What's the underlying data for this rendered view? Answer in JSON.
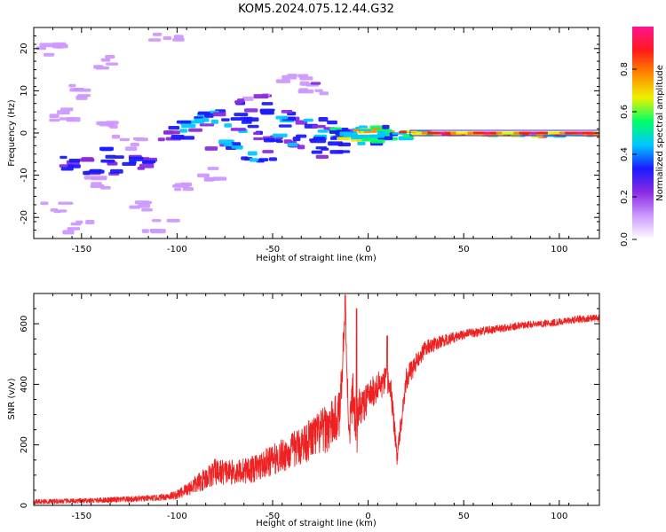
{
  "title": "KOM5.2024.075.12.44.G32",
  "chart_data": [
    {
      "type": "heatmap",
      "xlabel": "Height of straight line (km)",
      "ylabel": "Frequency (Hz)",
      "xlim": [
        -175,
        121
      ],
      "ylim": [
        -25,
        25
      ],
      "xticks": [
        -150,
        -100,
        -50,
        0,
        50,
        100
      ],
      "yticks": [
        -20,
        -10,
        0,
        10,
        20
      ],
      "colorbar": {
        "label": "Normalized spectral amplitude",
        "range": [
          0,
          1
        ],
        "ticks": [
          0.0,
          0.2,
          0.4,
          0.6,
          0.8
        ],
        "colors": [
          "#ffffff",
          "#cc99ff",
          "#8a2be2",
          "#1a1aff",
          "#00c8ff",
          "#00ff66",
          "#f0f000",
          "#ff8800",
          "#ff1a1a",
          "#ff1493"
        ]
      },
      "blobs": [
        {
          "x": -165,
          "y": 20,
          "amp": 0.15
        },
        {
          "x": -140,
          "y": 17,
          "amp": 0.12
        },
        {
          "x": -150,
          "y": 10,
          "amp": 0.15
        },
        {
          "x": -160,
          "y": 4,
          "amp": 0.15
        },
        {
          "x": -135,
          "y": 3,
          "amp": 0.12
        },
        {
          "x": -125,
          "y": -2,
          "amp": 0.15
        },
        {
          "x": -155,
          "y": -7,
          "amp": 0.35
        },
        {
          "x": -140,
          "y": -8,
          "amp": 0.38
        },
        {
          "x": -120,
          "y": -7,
          "amp": 0.35
        },
        {
          "x": -130,
          "y": -5,
          "amp": 0.3
        },
        {
          "x": -145,
          "y": -12,
          "amp": 0.15
        },
        {
          "x": -165,
          "y": -18,
          "amp": 0.12
        },
        {
          "x": -150,
          "y": -22,
          "amp": 0.12
        },
        {
          "x": -120,
          "y": -17,
          "amp": 0.12
        },
        {
          "x": -110,
          "y": -22,
          "amp": 0.1
        },
        {
          "x": -100,
          "y": 0,
          "amp": 0.4
        },
        {
          "x": -90,
          "y": 2,
          "amp": 0.45
        },
        {
          "x": -82,
          "y": 4,
          "amp": 0.4
        },
        {
          "x": -75,
          "y": -2,
          "amp": 0.42
        },
        {
          "x": -68,
          "y": 2,
          "amp": 0.4
        },
        {
          "x": -60,
          "y": 6,
          "amp": 0.35
        },
        {
          "x": -56,
          "y": -6,
          "amp": 0.4
        },
        {
          "x": -50,
          "y": 0,
          "amp": 0.42
        },
        {
          "x": -45,
          "y": -3,
          "amp": 0.38
        },
        {
          "x": -38,
          "y": 4,
          "amp": 0.38
        },
        {
          "x": -30,
          "y": -2,
          "amp": 0.4
        },
        {
          "x": -25,
          "y": 2,
          "amp": 0.38
        },
        {
          "x": -20,
          "y": -4,
          "amp": 0.36
        },
        {
          "x": -15,
          "y": 0,
          "amp": 0.45
        },
        {
          "x": -8,
          "y": -1,
          "amp": 0.55
        },
        {
          "x": -3,
          "y": 0,
          "amp": 0.6
        },
        {
          "x": 2,
          "y": 0.5,
          "amp": 0.8
        },
        {
          "x": 8,
          "y": -1,
          "amp": 0.55
        },
        {
          "x": 15,
          "y": 0,
          "amp": 0.6
        },
        {
          "x": 22,
          "y": 0,
          "amp": 0.75
        },
        {
          "x": 35,
          "y": -0.3,
          "amp": 0.9
        },
        {
          "x": 50,
          "y": -0.3,
          "amp": 0.85
        },
        {
          "x": 65,
          "y": -0.5,
          "amp": 0.7
        },
        {
          "x": 80,
          "y": -0.5,
          "amp": 0.85
        },
        {
          "x": 95,
          "y": -0.7,
          "amp": 0.8
        },
        {
          "x": 110,
          "y": -0.5,
          "amp": 0.75
        },
        {
          "x": 118,
          "y": -0.4,
          "amp": 0.7
        },
        {
          "x": -40,
          "y": 12,
          "amp": 0.15
        },
        {
          "x": -28,
          "y": 11,
          "amp": 0.15
        },
        {
          "x": -60,
          "y": 9,
          "amp": 0.2
        },
        {
          "x": -105,
          "y": 22,
          "amp": 0.1
        },
        {
          "x": -80,
          "y": -10,
          "amp": 0.12
        },
        {
          "x": -95,
          "y": -12,
          "amp": 0.1
        }
      ]
    },
    {
      "type": "line",
      "xlabel": "Height of straight line (km)",
      "ylabel": "SNR (v/v)",
      "xlim": [
        -175,
        121
      ],
      "ylim": [
        0,
        700
      ],
      "xticks": [
        -150,
        -100,
        -50,
        0,
        50,
        100
      ],
      "yticks": [
        0,
        200,
        400,
        600
      ],
      "color": "#ee2222",
      "series": [
        {
          "x": [
            -175,
            -150,
            -125,
            -110,
            -100,
            -90,
            -80,
            -70,
            -60,
            -50,
            -40,
            -30,
            -20,
            -15,
            -12,
            -10,
            -8,
            -6,
            -5,
            -3,
            0,
            5,
            10,
            12,
            15,
            20,
            25,
            30,
            40,
            50,
            60,
            70,
            80,
            90,
            100,
            110,
            121
          ],
          "y": [
            12,
            15,
            20,
            25,
            35,
            70,
            110,
            110,
            120,
            150,
            180,
            220,
            260,
            300,
            650,
            230,
            380,
            220,
            330,
            320,
            360,
            390,
            410,
            380,
            160,
            420,
            470,
            520,
            545,
            565,
            575,
            585,
            595,
            600,
            605,
            615,
            620
          ],
          "spread": [
            8,
            8,
            10,
            10,
            15,
            30,
            45,
            40,
            45,
            50,
            60,
            70,
            80,
            80,
            60,
            60,
            70,
            70,
            60,
            60,
            50,
            50,
            50,
            45,
            30,
            40,
            30,
            25,
            20,
            15,
            15,
            12,
            12,
            12,
            12,
            12,
            12
          ],
          "peaks": [
            {
              "x": -12,
              "y": 695
            },
            {
              "x": -6,
              "y": 650
            },
            {
              "x": 10,
              "y": 560
            }
          ]
        }
      ]
    }
  ]
}
